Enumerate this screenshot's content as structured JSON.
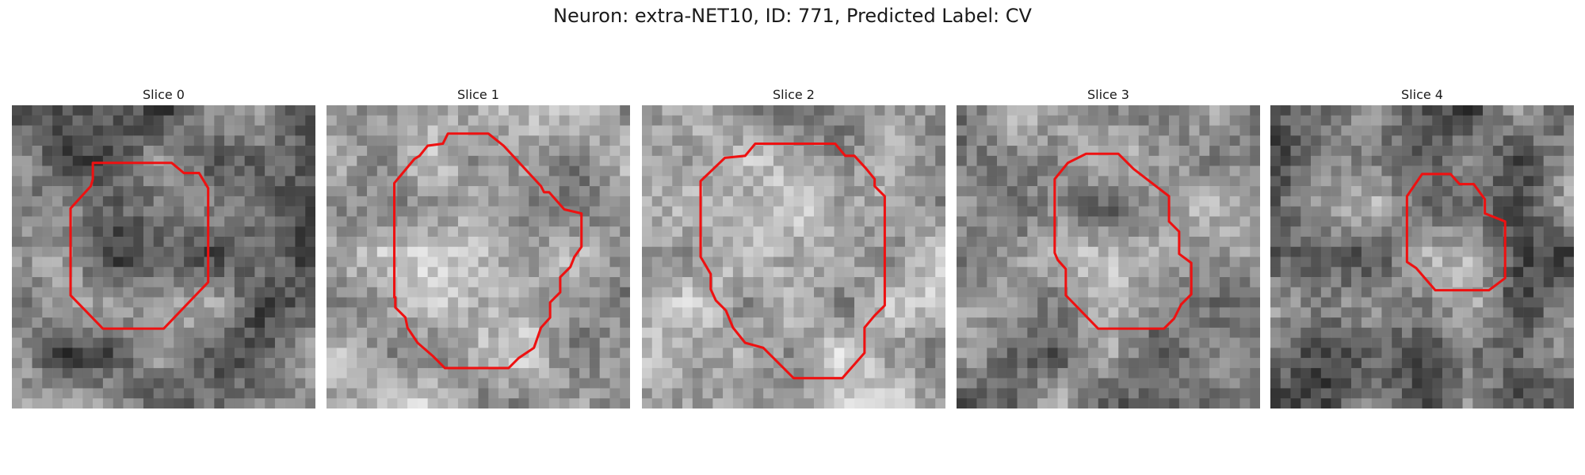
{
  "figure": {
    "title": "Neuron: extra-NET10, ID: 771, Predicted Label: CV"
  },
  "colors": {
    "contour": "#ee1111",
    "background": "#ffffff"
  },
  "slices": [
    {
      "label": "Slice 0",
      "seed": 11,
      "base": 118,
      "contrast": 70
    },
    {
      "label": "Slice 1",
      "seed": 23,
      "base": 165,
      "contrast": 60
    },
    {
      "label": "Slice 2",
      "seed": 37,
      "base": 170,
      "contrast": 55
    },
    {
      "label": "Slice 3",
      "seed": 51,
      "base": 135,
      "contrast": 65
    },
    {
      "label": "Slice 4",
      "seed": 67,
      "base": 128,
      "contrast": 70
    }
  ]
}
